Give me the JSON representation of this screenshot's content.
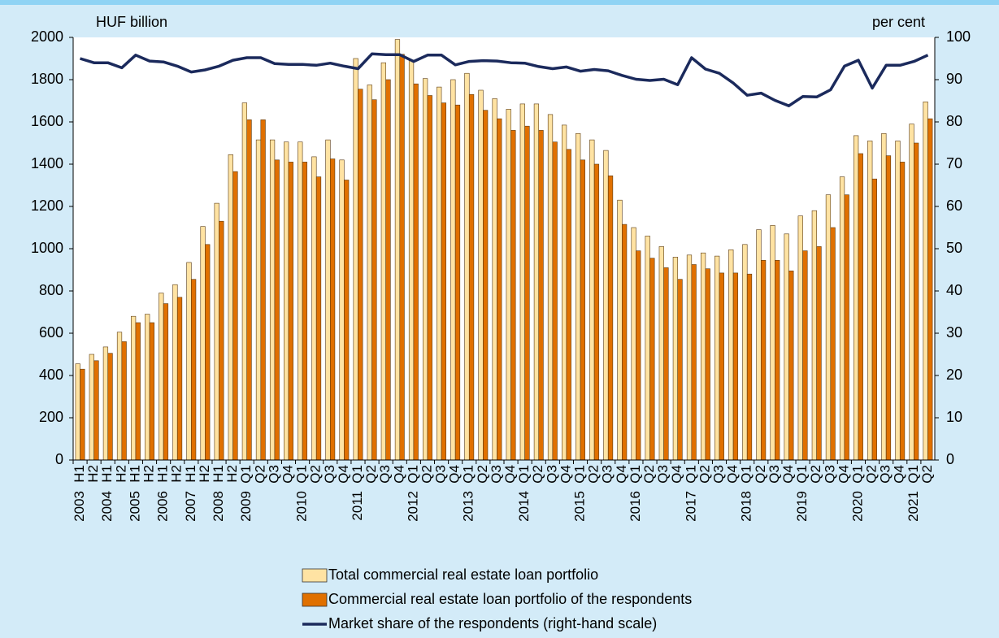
{
  "chart_data": {
    "type": "bar_line",
    "y_label": "HUF billion",
    "y2_label": "per cent",
    "categories": [
      "H1",
      "H2",
      "H1",
      "H2",
      "H1",
      "H2",
      "H1",
      "H2",
      "H1",
      "H2",
      "H1",
      "H2",
      "Q1",
      "Q2",
      "Q3",
      "Q4",
      "Q1",
      "Q2",
      "Q3",
      "Q4",
      "Q1",
      "Q2",
      "Q3",
      "Q4",
      "Q1",
      "Q2",
      "Q3",
      "Q4",
      "Q1",
      "Q2",
      "Q3",
      "Q4",
      "Q1",
      "Q2",
      "Q3",
      "Q4",
      "Q1",
      "Q2",
      "Q3",
      "Q4",
      "Q1",
      "Q2",
      "Q3",
      "Q4",
      "Q1",
      "Q2",
      "Q3",
      "Q4",
      "Q1",
      "Q2",
      "Q3",
      "Q4",
      "Q1",
      "Q2",
      "Q3",
      "Q4",
      "Q1",
      "Q2",
      "Q3",
      "Q4",
      "Q1",
      "Q2"
    ],
    "years": [
      "2003",
      null,
      "2004",
      null,
      "2005",
      null,
      "2006",
      null,
      "2007",
      null,
      "2008",
      null,
      "2009",
      null,
      null,
      null,
      "2010",
      null,
      null,
      null,
      "2011",
      null,
      null,
      null,
      "2012",
      null,
      null,
      null,
      "2013",
      null,
      null,
      null,
      "2014",
      null,
      null,
      null,
      "2015",
      null,
      null,
      null,
      "2016",
      null,
      null,
      null,
      "2017",
      null,
      null,
      null,
      "2018",
      null,
      null,
      null,
      "2019",
      null,
      null,
      null,
      "2020",
      null,
      null,
      null,
      "2021",
      null
    ],
    "series": [
      {
        "name": "Total commercial real estate loan portfolio",
        "kind": "bar",
        "color": "#ffe3a3",
        "values": [
          455,
          500,
          535,
          605,
          680,
          690,
          790,
          830,
          935,
          1105,
          1215,
          1445,
          1690,
          1515,
          1515,
          1505,
          1505,
          1435,
          1515,
          1420,
          1900,
          1775,
          1880,
          1990,
          1890,
          1805,
          1765,
          1800,
          1830,
          1750,
          1710,
          1660,
          1685,
          1685,
          1635,
          1585,
          1545,
          1515,
          1465,
          1230,
          1100,
          1060,
          1010,
          960,
          970,
          980,
          965,
          995,
          1020,
          1090,
          1110,
          1070,
          1155,
          1180,
          1255,
          1340,
          1535,
          1510,
          1545,
          1510,
          1590,
          1695
        ]
      },
      {
        "name": "Commercial real estate loan portfolio of the respondents",
        "kind": "bar",
        "color": "#e07000",
        "values": [
          430,
          470,
          505,
          560,
          650,
          650,
          740,
          770,
          855,
          1020,
          1130,
          1365,
          1610,
          1610,
          1420,
          1410,
          1410,
          1340,
          1425,
          1325,
          1755,
          1705,
          1800,
          1920,
          1780,
          1725,
          1690,
          1680,
          1730,
          1655,
          1615,
          1560,
          1580,
          1560,
          1505,
          1470,
          1420,
          1400,
          1345,
          1115,
          990,
          955,
          910,
          855,
          925,
          905,
          885,
          885,
          880,
          945,
          945,
          895,
          990,
          1010,
          1100,
          1255,
          1450,
          1330,
          1440,
          1410,
          1500,
          1615
        ]
      },
      {
        "name": "Market share of the respondents (right-hand scale)",
        "kind": "line",
        "axis": "y2",
        "color": "#1b2a5c",
        "values": [
          95,
          94,
          94,
          92.8,
          95.8,
          94.4,
          94.2,
          93.2,
          91.8,
          92.3,
          93.2,
          94.6,
          95.2,
          95.2,
          93.8,
          93.6,
          93.6,
          93.4,
          93.9,
          93.2,
          92.6,
          96.1,
          95.9,
          95.9,
          94.3,
          95.8,
          95.8,
          93.5,
          94.3,
          94.5,
          94.4,
          94,
          93.9,
          93.1,
          92.6,
          93,
          92,
          92.4,
          92.1,
          91,
          90.1,
          89.8,
          90.1,
          88.8,
          95.2,
          92.5,
          91.5,
          89.2,
          86.3,
          86.8,
          85.1,
          83.8,
          86,
          85.9,
          87.6,
          93.2,
          94.6,
          88,
          93.4,
          93.4,
          94.3,
          95.8
        ]
      }
    ],
    "ylim": [
      0,
      2000
    ],
    "yticks": [
      0,
      200,
      400,
      600,
      800,
      1000,
      1200,
      1400,
      1600,
      1800,
      2000
    ],
    "y2lim": [
      0,
      100
    ],
    "y2ticks": [
      0,
      10,
      20,
      30,
      40,
      50,
      60,
      70,
      80,
      90,
      100
    ],
    "grid": false
  }
}
